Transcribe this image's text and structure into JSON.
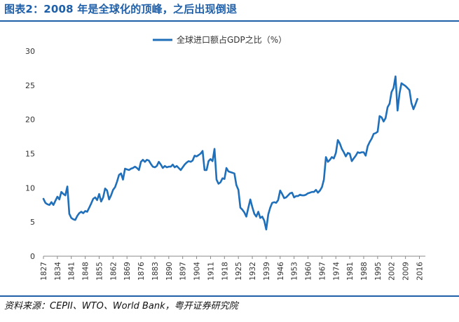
{
  "title": "图表2：2008 年是全球化的顶峰，之后出现倒退",
  "source": "资料来源：CEPII、WTO、World Bank，粤开证券研究院",
  "colors": {
    "accent": "#1f5fa8",
    "series": "#1f6fba",
    "axis": "#888888"
  },
  "chart_data": {
    "type": "line",
    "title": "",
    "xlabel": "",
    "ylabel": "",
    "xlim": [
      1827,
      2019
    ],
    "ylim": [
      0,
      30
    ],
    "yticks": [
      0,
      5,
      10,
      15,
      20,
      25,
      30
    ],
    "xticks": [
      1827,
      1834,
      1841,
      1848,
      1855,
      1862,
      1869,
      1876,
      1883,
      1890,
      1897,
      1904,
      1911,
      1918,
      1925,
      1932,
      1939,
      1946,
      1953,
      1960,
      1967,
      1974,
      1981,
      1988,
      1995,
      2002,
      2009,
      2016
    ],
    "legend": {
      "position": "top-center"
    },
    "grid": false,
    "series": [
      {
        "name": "全球进口额占GDP之比（%）",
        "points": [
          [
            1827,
            8.4
          ],
          [
            1828,
            7.8
          ],
          [
            1829,
            7.6
          ],
          [
            1830,
            7.5
          ],
          [
            1831,
            7.9
          ],
          [
            1832,
            7.5
          ],
          [
            1833,
            8.1
          ],
          [
            1834,
            8.7
          ],
          [
            1835,
            8.3
          ],
          [
            1836,
            9.4
          ],
          [
            1837,
            9.1
          ],
          [
            1838,
            8.9
          ],
          [
            1839,
            10.2
          ],
          [
            1840,
            6.2
          ],
          [
            1841,
            5.6
          ],
          [
            1842,
            5.4
          ],
          [
            1843,
            5.3
          ],
          [
            1844,
            5.9
          ],
          [
            1845,
            6.3
          ],
          [
            1846,
            6.5
          ],
          [
            1847,
            6.3
          ],
          [
            1848,
            6.6
          ],
          [
            1849,
            6.5
          ],
          [
            1850,
            7.1
          ],
          [
            1851,
            7.7
          ],
          [
            1852,
            8.4
          ],
          [
            1853,
            8.6
          ],
          [
            1854,
            8.2
          ],
          [
            1855,
            9.1
          ],
          [
            1856,
            8.0
          ],
          [
            1857,
            8.6
          ],
          [
            1858,
            9.9
          ],
          [
            1859,
            9.6
          ],
          [
            1860,
            8.3
          ],
          [
            1861,
            8.9
          ],
          [
            1862,
            9.7
          ],
          [
            1863,
            10.1
          ],
          [
            1864,
            10.9
          ],
          [
            1865,
            11.9
          ],
          [
            1866,
            12.1
          ],
          [
            1867,
            11.2
          ],
          [
            1868,
            12.8
          ],
          [
            1869,
            12.7
          ],
          [
            1870,
            12.6
          ],
          [
            1871,
            12.8
          ],
          [
            1872,
            12.9
          ],
          [
            1873,
            13.1
          ],
          [
            1874,
            12.9
          ],
          [
            1875,
            12.6
          ],
          [
            1876,
            13.8
          ],
          [
            1877,
            14.1
          ],
          [
            1878,
            13.8
          ],
          [
            1879,
            14.1
          ],
          [
            1880,
            14.0
          ],
          [
            1881,
            13.5
          ],
          [
            1882,
            13.1
          ],
          [
            1883,
            13.0
          ],
          [
            1884,
            13.2
          ],
          [
            1885,
            13.8
          ],
          [
            1886,
            13.4
          ],
          [
            1887,
            12.9
          ],
          [
            1888,
            13.2
          ],
          [
            1889,
            13.0
          ],
          [
            1890,
            13.1
          ],
          [
            1891,
            13.1
          ],
          [
            1892,
            13.4
          ],
          [
            1893,
            13.0
          ],
          [
            1894,
            13.2
          ],
          [
            1895,
            12.9
          ],
          [
            1896,
            12.6
          ],
          [
            1897,
            13.0
          ],
          [
            1898,
            13.4
          ],
          [
            1899,
            13.7
          ],
          [
            1900,
            13.9
          ],
          [
            1901,
            13.8
          ],
          [
            1902,
            14.0
          ],
          [
            1903,
            14.7
          ],
          [
            1904,
            14.6
          ],
          [
            1905,
            14.8
          ],
          [
            1906,
            15.0
          ],
          [
            1907,
            15.4
          ],
          [
            1908,
            12.6
          ],
          [
            1909,
            12.6
          ],
          [
            1910,
            13.9
          ],
          [
            1911,
            14.2
          ],
          [
            1912,
            13.9
          ],
          [
            1913,
            15.7
          ],
          [
            1914,
            11.2
          ],
          [
            1915,
            10.6
          ],
          [
            1916,
            10.8
          ],
          [
            1917,
            11.4
          ],
          [
            1918,
            11.3
          ],
          [
            1919,
            12.9
          ],
          [
            1920,
            12.4
          ],
          [
            1921,
            12.3
          ],
          [
            1922,
            12.2
          ],
          [
            1923,
            12.1
          ],
          [
            1924,
            10.4
          ],
          [
            1925,
            9.7
          ],
          [
            1926,
            7.1
          ],
          [
            1927,
            6.8
          ],
          [
            1928,
            6.4
          ],
          [
            1929,
            5.8
          ],
          [
            1930,
            7.1
          ],
          [
            1931,
            8.3
          ],
          [
            1932,
            7.2
          ],
          [
            1933,
            6.2
          ],
          [
            1934,
            5.8
          ],
          [
            1935,
            6.5
          ],
          [
            1936,
            5.6
          ],
          [
            1937,
            5.8
          ],
          [
            1938,
            5.2
          ],
          [
            1939,
            3.9
          ],
          [
            1940,
            6.1
          ],
          [
            1941,
            7.1
          ],
          [
            1942,
            7.8
          ],
          [
            1943,
            7.9
          ],
          [
            1944,
            7.8
          ],
          [
            1945,
            8.2
          ],
          [
            1946,
            9.6
          ],
          [
            1947,
            9.1
          ],
          [
            1948,
            8.5
          ],
          [
            1949,
            8.6
          ],
          [
            1950,
            8.9
          ],
          [
            1951,
            9.2
          ],
          [
            1952,
            9.3
          ],
          [
            1953,
            8.6
          ],
          [
            1954,
            8.8
          ],
          [
            1955,
            8.8
          ],
          [
            1956,
            9.0
          ],
          [
            1957,
            8.9
          ],
          [
            1958,
            8.9
          ],
          [
            1959,
            9.0
          ],
          [
            1960,
            9.2
          ],
          [
            1961,
            9.3
          ],
          [
            1962,
            9.4
          ],
          [
            1963,
            9.4
          ],
          [
            1964,
            9.7
          ],
          [
            1965,
            9.3
          ],
          [
            1966,
            9.6
          ],
          [
            1967,
            10.1
          ],
          [
            1968,
            11.2
          ],
          [
            1969,
            14.5
          ],
          [
            1970,
            13.8
          ],
          [
            1971,
            14.1
          ],
          [
            1972,
            14.5
          ],
          [
            1973,
            14.3
          ],
          [
            1974,
            15.1
          ],
          [
            1975,
            17.0
          ],
          [
            1976,
            16.5
          ],
          [
            1977,
            15.7
          ],
          [
            1978,
            15.2
          ],
          [
            1979,
            14.6
          ],
          [
            1980,
            15.1
          ],
          [
            1981,
            15.0
          ],
          [
            1982,
            13.9
          ],
          [
            1983,
            14.3
          ],
          [
            1984,
            14.7
          ],
          [
            1985,
            15.2
          ],
          [
            1986,
            15.1
          ],
          [
            1987,
            15.2
          ],
          [
            1988,
            15.2
          ],
          [
            1989,
            14.7
          ],
          [
            1990,
            16.1
          ],
          [
            1991,
            16.7
          ],
          [
            1992,
            17.2
          ],
          [
            1993,
            17.9
          ],
          [
            1994,
            18.0
          ],
          [
            1995,
            18.2
          ],
          [
            1996,
            20.5
          ],
          [
            1997,
            20.3
          ],
          [
            1998,
            19.7
          ],
          [
            1999,
            20.2
          ],
          [
            2000,
            21.8
          ],
          [
            2001,
            22.3
          ],
          [
            2002,
            24.0
          ],
          [
            2003,
            24.6
          ],
          [
            2004,
            26.3
          ],
          [
            2005,
            21.3
          ],
          [
            2006,
            23.8
          ],
          [
            2007,
            25.3
          ],
          [
            2008,
            25.1
          ],
          [
            2009,
            24.9
          ],
          [
            2010,
            24.6
          ],
          [
            2011,
            24.3
          ],
          [
            2012,
            22.4
          ],
          [
            2013,
            21.5
          ],
          [
            2014,
            22.2
          ],
          [
            2015,
            23.0
          ]
        ]
      }
    ]
  }
}
